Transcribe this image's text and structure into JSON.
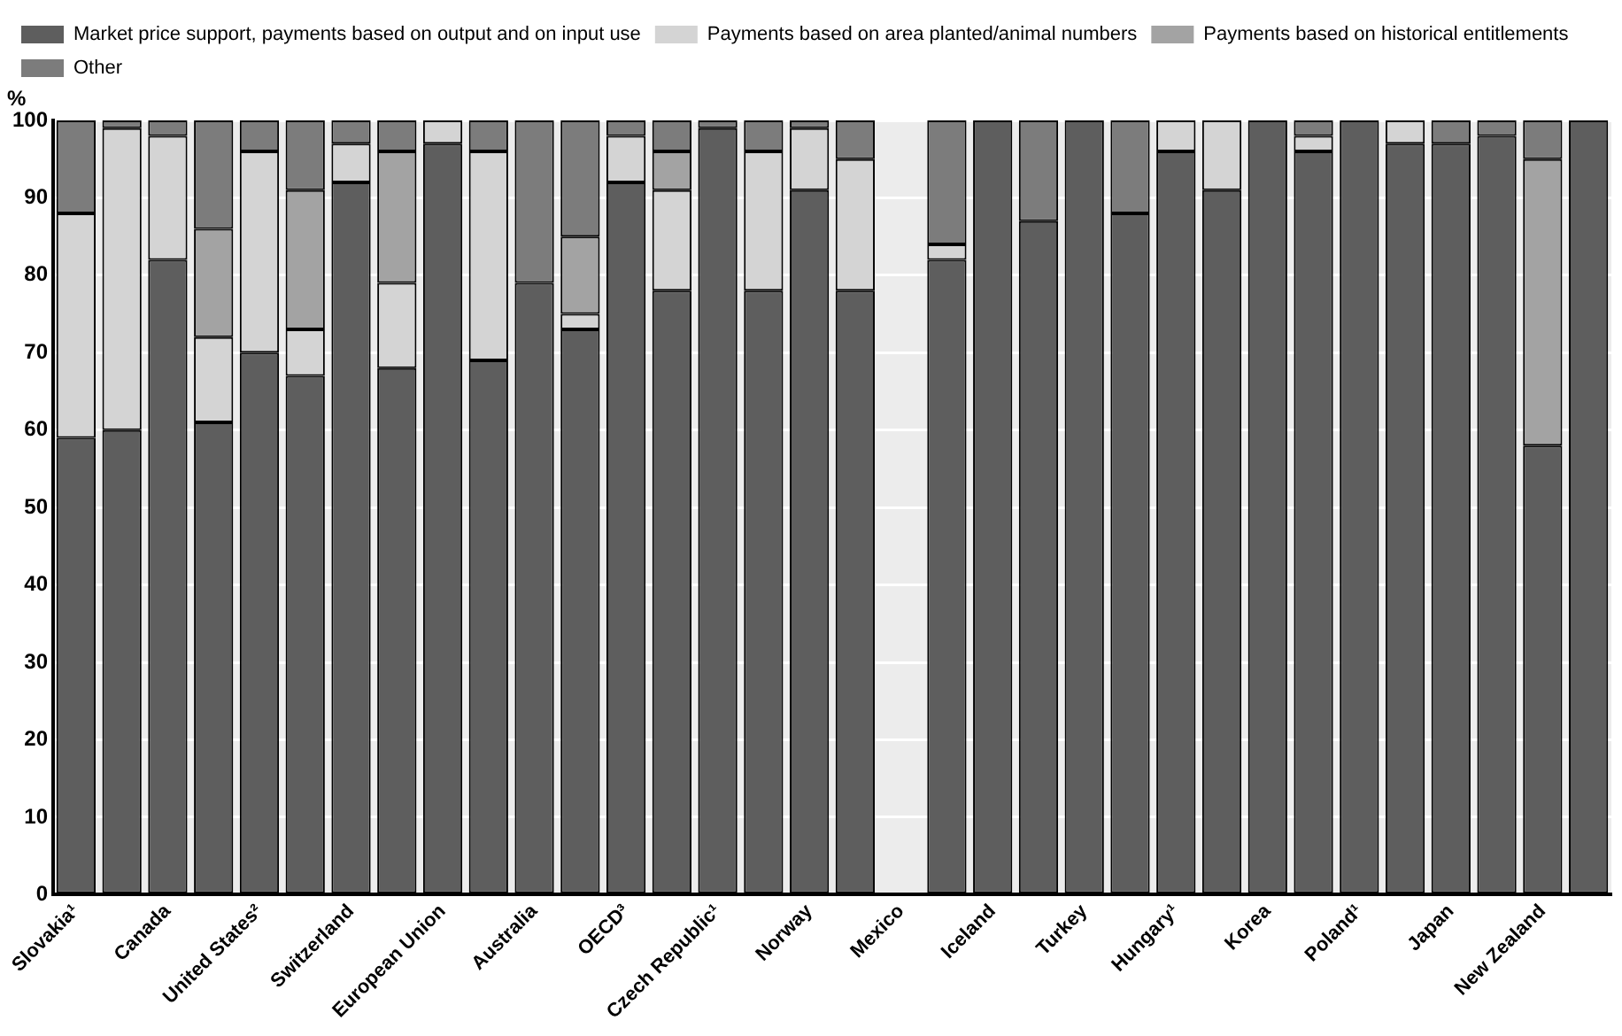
{
  "chart_data": {
    "type": "bar",
    "stacked": true,
    "ylabel": "%",
    "categories": [
      "Slovakia¹",
      null,
      "Canada",
      null,
      "United States²",
      null,
      "Switzerland",
      null,
      "European Union",
      null,
      "Australia",
      null,
      "OECD³",
      null,
      "Czech Republic¹",
      null,
      "Norway",
      null,
      "Mexico",
      null,
      "Iceland",
      null,
      "Turkey",
      null,
      "Hungary¹",
      null,
      "Korea",
      null,
      "Poland¹",
      null,
      "Japan",
      null,
      "New Zealand",
      null
    ],
    "series": [
      {
        "name": "Market price support, payments based on output and on input use",
        "color": "#5e5e5e",
        "values": [
          59,
          60,
          82,
          61,
          70,
          67,
          92,
          68,
          97,
          69,
          79,
          73,
          92,
          78,
          99,
          78,
          91,
          78,
          null,
          82,
          100,
          87,
          100,
          88,
          96,
          91,
          100,
          96,
          100,
          97,
          97,
          98,
          58,
          100
        ]
      },
      {
        "name": "Payments based on area planted/animal numbers",
        "color": "#d4d4d4",
        "values": [
          29,
          39,
          16,
          11,
          26,
          6,
          5,
          11,
          3,
          27,
          0,
          2,
          6,
          13,
          0,
          18,
          8,
          17,
          null,
          2,
          0,
          0,
          0,
          0,
          4,
          9,
          0,
          2,
          0,
          3,
          0,
          0,
          0,
          0
        ]
      },
      {
        "name": "Payments based on historical entitlements",
        "color": "#a3a3a3",
        "values": [
          0,
          0,
          0,
          14,
          0,
          18,
          0,
          17,
          0,
          0,
          0,
          10,
          0,
          5,
          0,
          0,
          0,
          0,
          null,
          0,
          0,
          0,
          0,
          0,
          0,
          0,
          0,
          0,
          0,
          0,
          0,
          0,
          37,
          0
        ]
      },
      {
        "name": "Other",
        "color": "#7c7c7c",
        "values": [
          12,
          1,
          2,
          14,
          4,
          9,
          3,
          4,
          0,
          4,
          21,
          15,
          2,
          4,
          1,
          4,
          1,
          5,
          null,
          16,
          0,
          13,
          0,
          12,
          0,
          0,
          0,
          2,
          0,
          0,
          3,
          2,
          5,
          0
        ]
      }
    ],
    "ylim": [
      0,
      100
    ],
    "yticks": [
      0,
      10,
      20,
      30,
      40,
      50,
      60,
      70,
      80,
      90,
      100
    ],
    "grid": "y",
    "legend": "top left"
  }
}
